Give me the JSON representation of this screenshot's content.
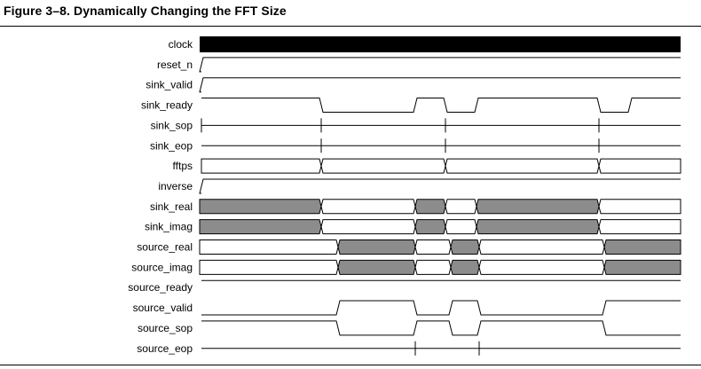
{
  "figure": {
    "title": "Figure 3–8.  Dynamically Changing the FFT Size"
  },
  "colors": {
    "bus_fill": "#8c8c8c",
    "line": "#000000",
    "background": "#ffffff"
  },
  "signals": [
    {
      "name": "clock",
      "type": "clock"
    },
    {
      "name": "reset_n",
      "type": "bit",
      "initial": 0,
      "edges": [
        227
      ]
    },
    {
      "name": "sink_valid",
      "type": "bit",
      "initial": 0,
      "edges": [
        227
      ]
    },
    {
      "name": "sink_ready",
      "type": "bit",
      "initial": 1,
      "edges": [
        362,
        468,
        502,
        537,
        675,
        710
      ]
    },
    {
      "name": "sink_sop",
      "type": "pulse",
      "pulses": [
        227,
        362,
        502,
        675
      ]
    },
    {
      "name": "sink_eop",
      "type": "pulse",
      "pulses": [
        362,
        502,
        675
      ]
    },
    {
      "name": "fftps",
      "type": "bus",
      "start": 227,
      "segments": [
        [
          227,
          362,
          false
        ],
        [
          362,
          502,
          false
        ],
        [
          502,
          675,
          false
        ],
        [
          675,
          767,
          false
        ]
      ]
    },
    {
      "name": "inverse",
      "type": "bit",
      "initial": 0,
      "edges": [
        227
      ]
    },
    {
      "name": "sink_real",
      "type": "bus",
      "start": 225,
      "segments": [
        [
          225,
          362,
          true
        ],
        [
          362,
          468,
          false
        ],
        [
          468,
          502,
          true
        ],
        [
          502,
          537,
          false
        ],
        [
          537,
          675,
          true
        ],
        [
          675,
          767,
          false
        ]
      ]
    },
    {
      "name": "sink_imag",
      "type": "bus",
      "start": 225,
      "segments": [
        [
          225,
          362,
          true
        ],
        [
          362,
          468,
          false
        ],
        [
          468,
          502,
          true
        ],
        [
          502,
          537,
          false
        ],
        [
          537,
          675,
          true
        ],
        [
          675,
          767,
          false
        ]
      ]
    },
    {
      "name": "source_real",
      "type": "bus",
      "start": 225,
      "segments": [
        [
          225,
          381,
          false
        ],
        [
          381,
          468,
          true
        ],
        [
          468,
          508,
          false
        ],
        [
          508,
          540,
          true
        ],
        [
          540,
          681,
          false
        ],
        [
          681,
          767,
          true
        ]
      ]
    },
    {
      "name": "source_imag",
      "type": "bus",
      "start": 225,
      "segments": [
        [
          225,
          381,
          false
        ],
        [
          381,
          468,
          true
        ],
        [
          468,
          508,
          false
        ],
        [
          508,
          540,
          true
        ],
        [
          540,
          681,
          false
        ],
        [
          681,
          767,
          true
        ]
      ]
    },
    {
      "name": "source_ready",
      "type": "bit",
      "initial": 1,
      "edges": []
    },
    {
      "name": "source_valid",
      "type": "bit",
      "initial": 0,
      "edges": [
        381,
        468,
        508,
        540,
        681
      ]
    },
    {
      "name": "source_sop",
      "type": "bit",
      "initial": 1,
      "edges": [
        381,
        468,
        508,
        540,
        681
      ]
    },
    {
      "name": "source_eop",
      "type": "pulse",
      "pulses": [
        468,
        540
      ]
    }
  ]
}
